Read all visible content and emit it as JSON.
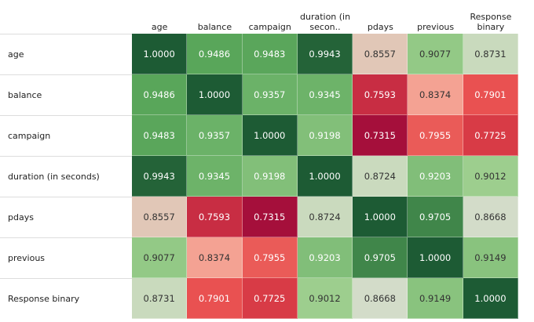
{
  "chart_data": {
    "type": "heatmap",
    "x_categories": [
      "age",
      "balance",
      "campaign",
      "duration (in secon..",
      "pdays",
      "previous",
      "Response binary"
    ],
    "y_categories": [
      "age",
      "balance",
      "campaign",
      "duration (in seconds)",
      "pdays",
      "previous",
      "Response binary"
    ],
    "values": [
      [
        1.0,
        0.9486,
        0.9483,
        0.9943,
        0.8557,
        0.9077,
        0.8731
      ],
      [
        0.9486,
        1.0,
        0.9357,
        0.9345,
        0.7593,
        0.8374,
        0.7901
      ],
      [
        0.9483,
        0.9357,
        1.0,
        0.9198,
        0.7315,
        0.7955,
        0.7725
      ],
      [
        0.9943,
        0.9345,
        0.9198,
        1.0,
        0.8724,
        0.9203,
        0.9012
      ],
      [
        0.8557,
        0.7593,
        0.7315,
        0.8724,
        1.0,
        0.9705,
        0.8668
      ],
      [
        0.9077,
        0.8374,
        0.7955,
        0.9203,
        0.9705,
        1.0,
        0.9149
      ],
      [
        0.8731,
        0.7901,
        0.7725,
        0.9012,
        0.8668,
        0.9149,
        1.0
      ]
    ],
    "value_labels": [
      [
        "1.0000",
        "0.9486",
        "0.9483",
        "0.9943",
        "0.8557",
        "0.9077",
        "0.8731"
      ],
      [
        "0.9486",
        "1.0000",
        "0.9357",
        "0.9345",
        "0.7593",
        "0.8374",
        "0.7901"
      ],
      [
        "0.9483",
        "0.9357",
        "1.0000",
        "0.9198",
        "0.7315",
        "0.7955",
        "0.7725"
      ],
      [
        "0.9943",
        "0.9345",
        "0.9198",
        "1.0000",
        "0.8724",
        "0.9203",
        "0.9012"
      ],
      [
        "0.8557",
        "0.7593",
        "0.7315",
        "0.8724",
        "1.0000",
        "0.9705",
        "0.8668"
      ],
      [
        "0.9077",
        "0.8374",
        "0.7955",
        "0.9203",
        "0.9705",
        "1.0000",
        "0.9149"
      ],
      [
        "0.8731",
        "0.7901",
        "0.7725",
        "0.9012",
        "0.8668",
        "0.9149",
        "1.0000"
      ]
    ]
  }
}
